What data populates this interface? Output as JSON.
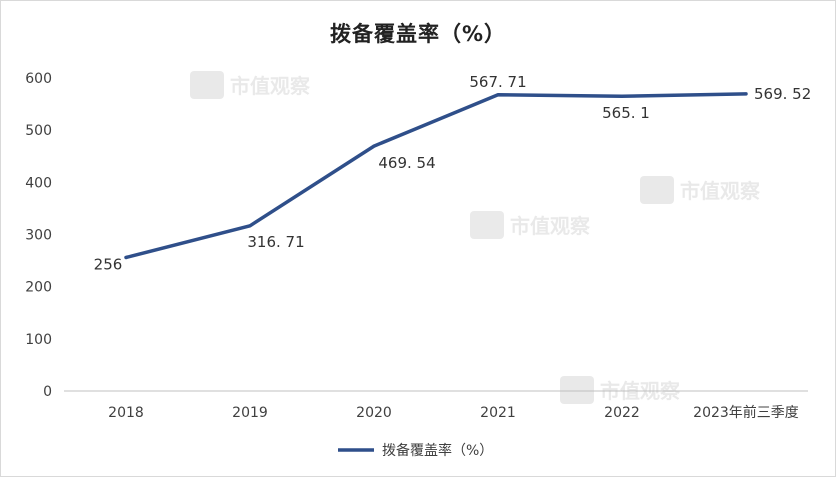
{
  "title": "拨备覆盖率（%）",
  "watermark_text": "市值观察",
  "colors": {
    "line": "#2f4f8a",
    "axis": "#c0c0c0",
    "text": "#404040"
  },
  "chart_data": {
    "type": "line",
    "title": "拨备覆盖率（%）",
    "categories": [
      "2018",
      "2019",
      "2020",
      "2021",
      "2022",
      "2023年前三季度"
    ],
    "series": [
      {
        "name": "拨备覆盖率（%）",
        "values": [
          256,
          316.71,
          469.54,
          567.71,
          565.1,
          569.52
        ]
      }
    ],
    "data_labels": [
      "256",
      "316. 71",
      "469. 54",
      "567. 71",
      "565. 1",
      "569. 52"
    ],
    "y_ticks": [
      0,
      100,
      200,
      300,
      400,
      500,
      600
    ],
    "ylim": [
      0,
      600
    ],
    "grid": false,
    "legend": "bottom"
  }
}
